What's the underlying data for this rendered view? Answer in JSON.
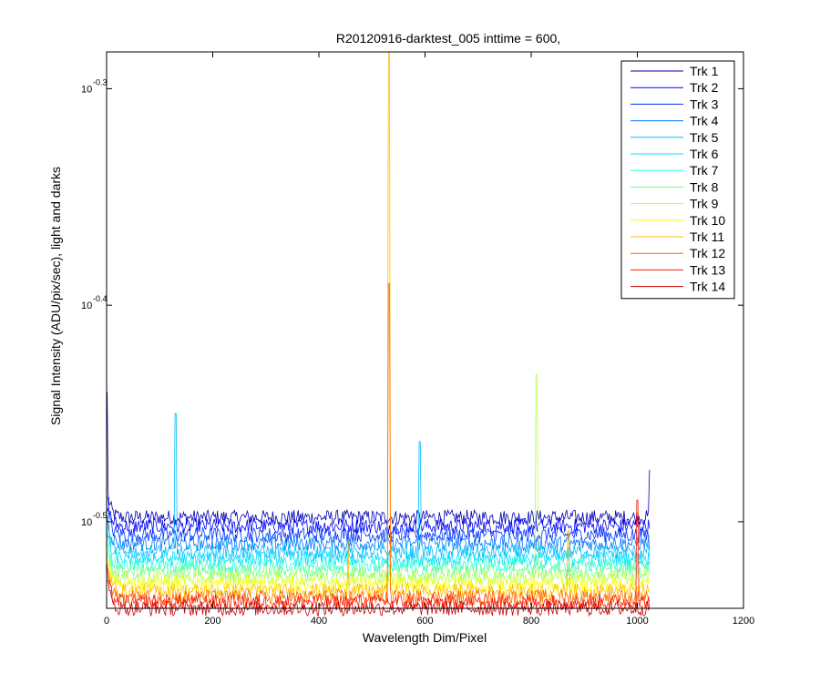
{
  "chart_data": {
    "type": "line",
    "title": "R20120916-darktest_005 inttime = 600,",
    "xlabel": "Wavelength Dim/Pixel",
    "ylabel": "Signal Intensity (ADU/pix/sec), light and darks",
    "xlim": [
      0,
      1200
    ],
    "ylim": [
      -0.54,
      -0.283
    ],
    "y_scale": "log10",
    "x_ticks": [
      0,
      200,
      400,
      600,
      800,
      1000,
      1200
    ],
    "x_tick_labels": [
      "0",
      "200",
      "400",
      "600",
      "800",
      "1000",
      "1200"
    ],
    "y_ticks": [
      -0.5,
      -0.4,
      -0.3
    ],
    "y_tick_base": "10",
    "y_tick_exponents": [
      "-0.5",
      "-0.4",
      "-0.3"
    ],
    "grid": false,
    "legend_position": "top-right",
    "x_range_data": [
      1,
      1024
    ],
    "series": [
      {
        "name": "Trk 1",
        "color": "#0000b4",
        "baseline": -0.498,
        "noise": 0.0035,
        "spikes": [
          [
            1,
            -0.44
          ],
          [
            1024,
            -0.476
          ]
        ]
      },
      {
        "name": "Trk 2",
        "color": "#0000ff",
        "baseline": -0.502,
        "noise": 0.0035,
        "spikes": []
      },
      {
        "name": "Trk 3",
        "color": "#0033ff",
        "baseline": -0.506,
        "noise": 0.0035,
        "spikes": []
      },
      {
        "name": "Trk 4",
        "color": "#0077ff",
        "baseline": -0.51,
        "noise": 0.0035,
        "spikes": []
      },
      {
        "name": "Trk 5",
        "color": "#00bbff",
        "baseline": -0.514,
        "noise": 0.0035,
        "spikes": [
          [
            130,
            -0.45
          ],
          [
            590,
            -0.463
          ]
        ]
      },
      {
        "name": "Trk 6",
        "color": "#00ddff",
        "baseline": -0.517,
        "noise": 0.0035,
        "spikes": []
      },
      {
        "name": "Trk 7",
        "color": "#22ffdd",
        "baseline": -0.52,
        "noise": 0.0035,
        "spikes": []
      },
      {
        "name": "Trk 8",
        "color": "#77ff88",
        "baseline": -0.523,
        "noise": 0.0035,
        "spikes": []
      },
      {
        "name": "Trk 9",
        "color": "#bbff44",
        "baseline": -0.526,
        "noise": 0.0035,
        "spikes": [
          [
            810,
            -0.432
          ]
        ]
      },
      {
        "name": "Trk 10",
        "color": "#ffff00",
        "baseline": -0.529,
        "noise": 0.0035,
        "spikes": []
      },
      {
        "name": "Trk 11",
        "color": "#ffbb00",
        "baseline": -0.532,
        "noise": 0.0035,
        "spikes": [
          [
            532,
            -0.283
          ],
          [
            455,
            -0.508
          ],
          [
            870,
            -0.504
          ]
        ]
      },
      {
        "name": "Trk 12",
        "color": "#ff6600",
        "baseline": -0.535,
        "noise": 0.0035,
        "spikes": [
          [
            532,
            -0.39
          ]
        ]
      },
      {
        "name": "Trk 13",
        "color": "#ff1a00",
        "baseline": -0.537,
        "noise": 0.0035,
        "spikes": [
          [
            1000,
            -0.49
          ]
        ]
      },
      {
        "name": "Trk 14",
        "color": "#cc0000",
        "baseline": -0.54,
        "noise": 0.0035,
        "spikes": []
      }
    ]
  }
}
